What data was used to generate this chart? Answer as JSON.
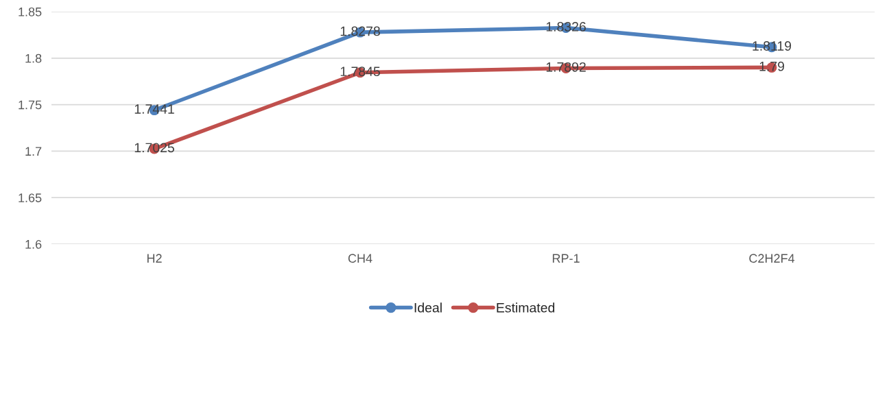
{
  "chart_data": {
    "type": "line",
    "categories": [
      "H2",
      "CH4",
      "RP-1",
      "C2H2F4"
    ],
    "series": [
      {
        "name": "Ideal",
        "color": "#4f81bd",
        "values": [
          1.7441,
          1.8278,
          1.8326,
          1.8119
        ]
      },
      {
        "name": "Estimated",
        "color": "#c0504d",
        "values": [
          1.7025,
          1.7845,
          1.7892,
          1.79
        ]
      }
    ],
    "ylim": [
      1.6,
      1.85
    ],
    "yticks": [
      1.6,
      1.65,
      1.7,
      1.75,
      1.8,
      1.85
    ],
    "grid": "y",
    "legend": "bottom",
    "marker": "circle",
    "line_style": "solid",
    "data_labels": true
  }
}
